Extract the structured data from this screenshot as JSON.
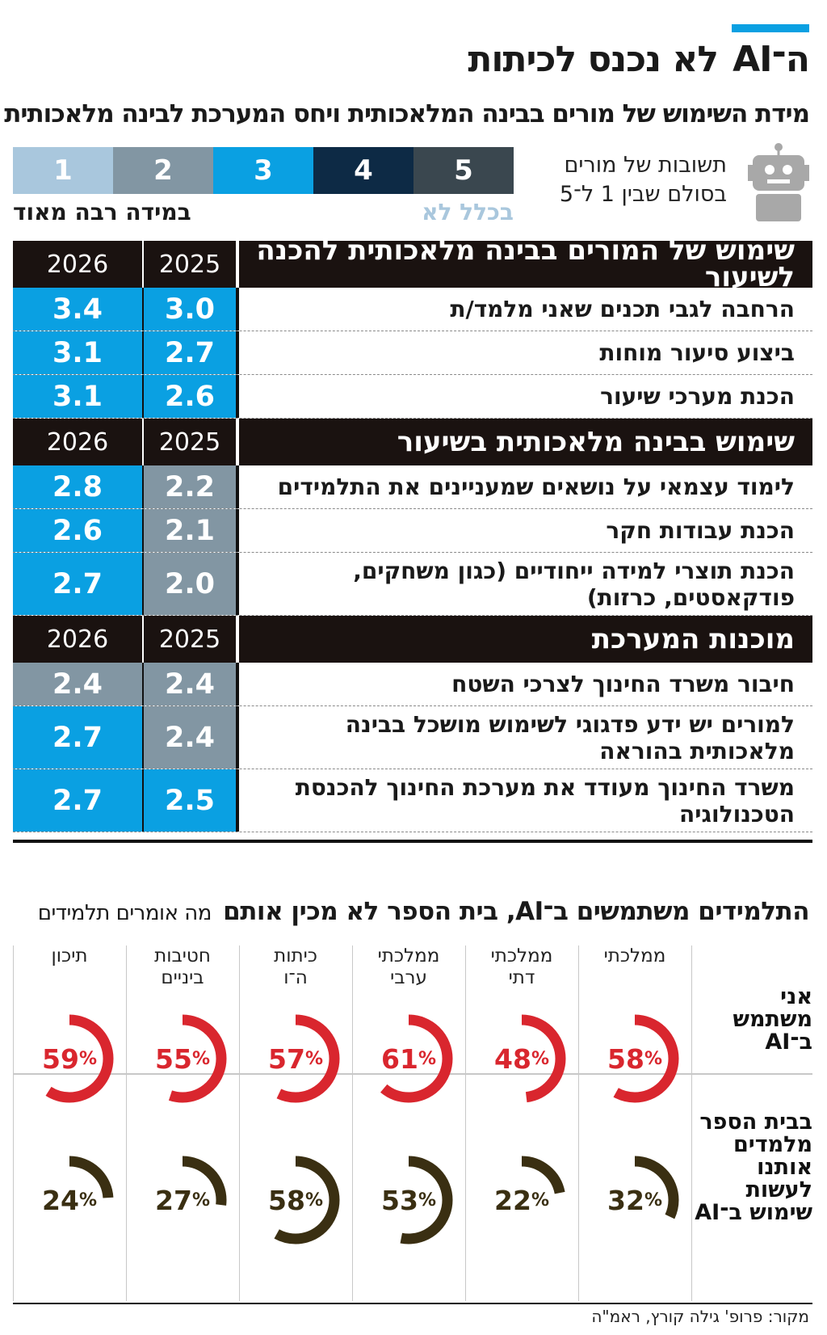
{
  "title": {
    "ai": "ה־AI",
    "rest": "לא נכנס לכיתות"
  },
  "subtitle": "מידת השימוש של מורים בבינה המלאכותית ויחס המערכת לבינה מלאכותית",
  "legend": {
    "note_line1": "תשובות של מורים",
    "note_line2": "בסולם שבין 1 ל־5",
    "low_label": "בכלל לא",
    "high_label": "במידה רבה מאוד",
    "scale": [
      {
        "value": "1",
        "color": "#a9c7dd"
      },
      {
        "value": "2",
        "color": "#8296a3"
      },
      {
        "value": "3",
        "color": "#0aa0e2"
      },
      {
        "value": "4",
        "color": "#0d2a45"
      },
      {
        "value": "5",
        "color": "#3a474f"
      }
    ]
  },
  "chart_data": [
    {
      "type": "table",
      "columns": [
        "2025",
        "2026"
      ],
      "sections": [
        {
          "title": "שימוש של המורים בבינה מלאכותית להכנה לשיעור",
          "rows": [
            {
              "label": "הרחבה לגבי תכנים שאני מלמד/ת",
              "v2025": "3.0",
              "v2026": "3.4"
            },
            {
              "label": "ביצוע סיעור מוחות",
              "v2025": "2.7",
              "v2026": "3.1"
            },
            {
              "label": "הכנת מערכי שיעור",
              "v2025": "2.6",
              "v2026": "3.1"
            }
          ]
        },
        {
          "title": "שימוש בבינה מלאכותית בשיעור",
          "rows": [
            {
              "label": "לימוד עצמאי על נושאים שמעניינים את התלמידים",
              "v2025": "2.2",
              "v2026": "2.8"
            },
            {
              "label": "הכנת עבודות חקר",
              "v2025": "2.1",
              "v2026": "2.6"
            },
            {
              "label": "הכנת תוצרי למידה ייחודיים (כגון משחקים, פודקאסטים, כרזות)",
              "v2025": "2.0",
              "v2026": "2.7"
            }
          ]
        },
        {
          "title": "מוכנות המערכת",
          "rows": [
            {
              "label": "חיבור משרד החינוך לצרכי השטח",
              "v2025": "2.4",
              "v2026": "2.4"
            },
            {
              "label": "למורים יש ידע פדגוגי לשימוש מושכל בבינה מלאכותית בהוראה",
              "v2025": "2.4",
              "v2026": "2.7"
            },
            {
              "label": "משרד החינוך מעודד את מערכת החינוך להכנסת הטכנולוגיה",
              "v2025": "2.5",
              "v2026": "2.7"
            }
          ]
        }
      ]
    },
    {
      "type": "pie",
      "title": "התלמידים משתמשים ב־AI, בית הספר לא מכין אותם",
      "subtitle": "מה אומרים תלמידים",
      "unit": "%",
      "categories": [
        [
          "ממלכתי"
        ],
        [
          "ממלכתי",
          "דתי"
        ],
        [
          "ממלכתי",
          "ערבי"
        ],
        [
          "כיתות",
          "ה־ו"
        ],
        [
          "חטיבות",
          "ביניים"
        ],
        [
          "תיכון"
        ]
      ],
      "series": [
        {
          "name": [
            "אני",
            "משתמש",
            "ב־AI"
          ],
          "color": "#d9262e",
          "values": [
            58,
            48,
            61,
            57,
            55,
            59
          ]
        },
        {
          "name": [
            "בבית הספר",
            "מלמדים",
            "אותנו",
            "לעשות",
            "שימוש ב־AI"
          ],
          "color": "#3a2f12",
          "values": [
            32,
            22,
            53,
            58,
            27,
            24
          ]
        }
      ]
    }
  ],
  "source": "מקור: פרופ' גילה קורץ, ראמ\"ה"
}
